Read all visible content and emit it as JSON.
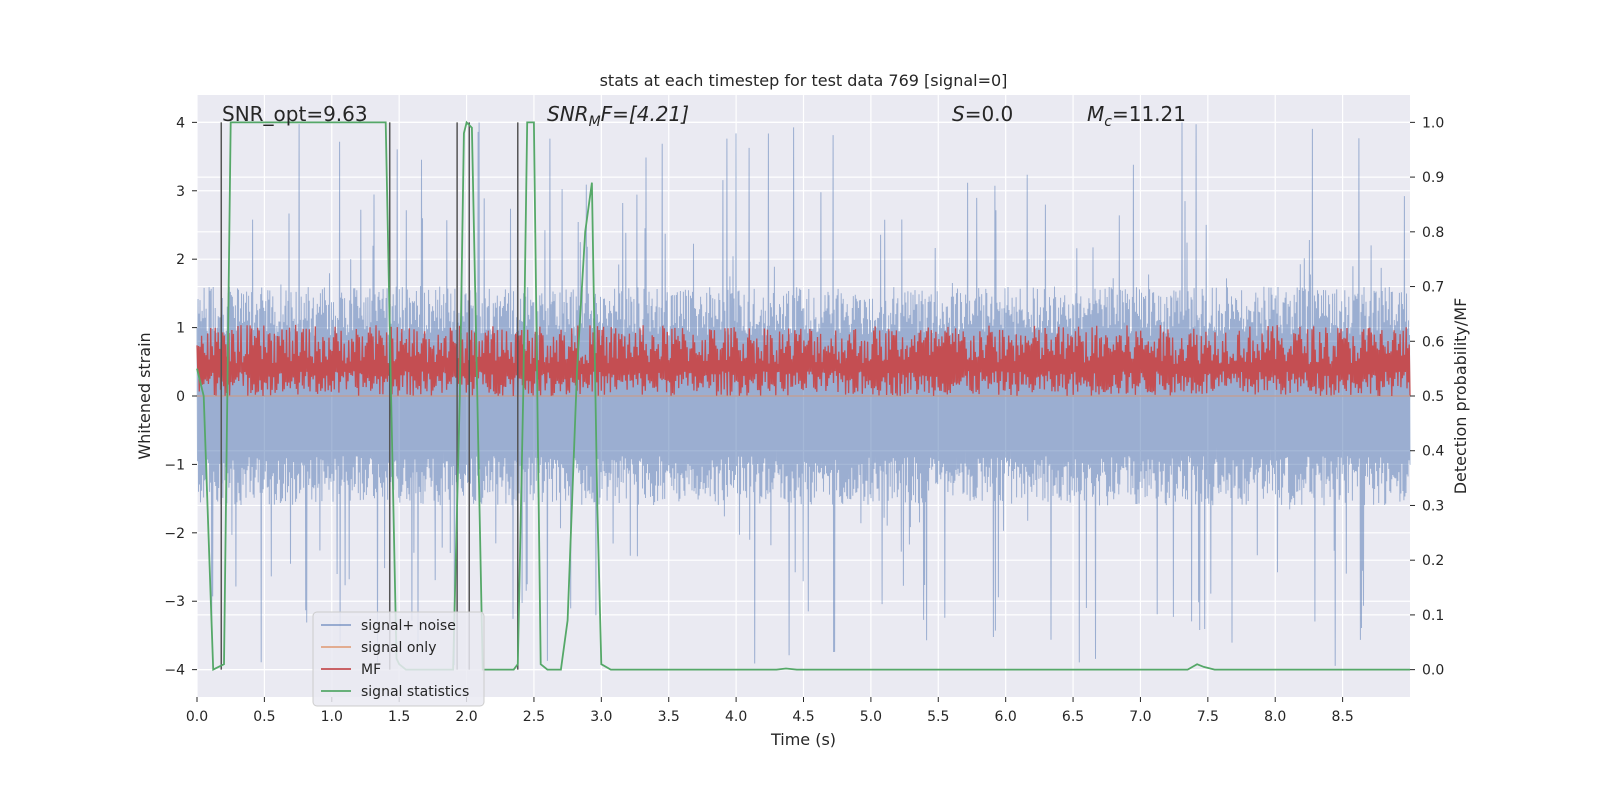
{
  "chart_data": {
    "type": "line",
    "title": "stats at each timestep for test data 769 [signal=0]",
    "xlabel": "Time (s)",
    "ylabel_left": "Whitened strain",
    "ylabel_right": "Detection probability/MF",
    "xlim": [
      0.0,
      9.0
    ],
    "ylim_left": [
      -4.4,
      4.4
    ],
    "ylim_right": [
      -0.05,
      1.05
    ],
    "x_ticks": [
      "0.0",
      "0.5",
      "1.0",
      "1.5",
      "2.0",
      "2.5",
      "3.0",
      "3.5",
      "4.0",
      "4.5",
      "5.0",
      "5.5",
      "6.0",
      "6.5",
      "7.0",
      "7.5",
      "8.0",
      "8.5"
    ],
    "y_ticks_left": [
      "−4",
      "−3",
      "−2",
      "−1",
      "0",
      "1",
      "2",
      "3",
      "4"
    ],
    "y_ticks_right": [
      "0.0",
      "0.1",
      "0.2",
      "0.3",
      "0.4",
      "0.5",
      "0.6",
      "0.7",
      "0.8",
      "0.9",
      "1.0"
    ],
    "annotations": {
      "snr_opt": "SNR_opt=9.63",
      "snr_mf_prefix": "SNR",
      "snr_mf_sub": "M",
      "snr_mf_suffix": "F=[4.21]",
      "s_label": "S",
      "s_value": "=0.0",
      "mc_label": "M",
      "mc_sub": "c",
      "mc_value": "=11.21"
    },
    "series": [
      {
        "name": "signal+ noise",
        "color": "#4c72b0",
        "kind": "noise",
        "amplitude_typical": 1.6,
        "amplitude_peak": 4.0
      },
      {
        "name": "signal only",
        "color": "#dd8452",
        "kind": "flat",
        "values": [
          0,
          0
        ]
      },
      {
        "name": "MF",
        "color": "#c44e52",
        "kind": "band",
        "range_right_axis": [
          0.5,
          0.63
        ]
      },
      {
        "name": "signal statistics",
        "color": "#55a868",
        "kind": "line",
        "x": [
          0.0,
          0.05,
          0.12,
          0.2,
          0.25,
          0.3,
          1.4,
          1.44,
          1.48,
          1.5,
          1.55,
          1.6,
          1.9,
          1.95,
          1.98,
          2.0,
          2.04,
          2.08,
          2.12,
          2.15,
          2.3,
          2.35,
          2.38,
          2.42,
          2.45,
          2.5,
          2.55,
          2.6,
          2.7,
          2.75,
          2.82,
          2.88,
          2.93,
          2.97,
          3.0,
          3.07,
          3.2,
          4.3,
          4.37,
          4.45,
          7.35,
          7.42,
          7.47,
          7.55,
          9.0
        ],
        "y": [
          0.55,
          0.5,
          0.0,
          0.01,
          1.0,
          1.0,
          1.0,
          0.5,
          0.02,
          0.01,
          0.0,
          0.0,
          0.0,
          0.5,
          0.98,
          1.0,
          0.99,
          0.5,
          0.0,
          0.0,
          0.0,
          0.0,
          0.01,
          0.5,
          1.0,
          1.0,
          0.01,
          0.0,
          0.0,
          0.09,
          0.55,
          0.8,
          0.89,
          0.3,
          0.01,
          0.0,
          0.0,
          0.0,
          0.002,
          0.0,
          0.0,
          0.01,
          0.005,
          0.0,
          0.0
        ]
      }
    ],
    "vertical_markers_x": [
      0.18,
      1.43,
      1.93,
      2.02,
      2.38
    ],
    "legend": {
      "location": "lower-left",
      "entries": [
        "signal+ noise",
        "signal only",
        "MF",
        "signal statistics"
      ]
    },
    "grid": true,
    "background": "#eaeaf2"
  }
}
